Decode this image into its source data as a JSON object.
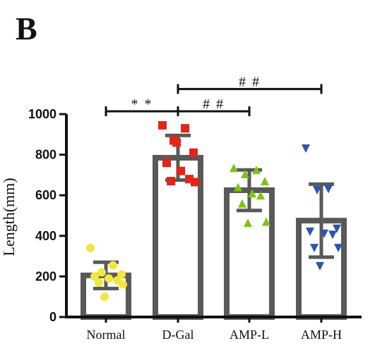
{
  "panel_label": "B",
  "chart_data": {
    "type": "bar",
    "ylabel": "Length(mm)",
    "xlabel": "",
    "ylim": [
      0,
      1000
    ],
    "yticks": [
      0,
      200,
      400,
      600,
      800,
      1000
    ],
    "ytick_labels": [
      "0",
      "200",
      "400",
      "600",
      "800",
      "1000"
    ],
    "categories": [
      "Normal",
      "D-Gal",
      "AMP-L",
      "AMP-H"
    ],
    "values": [
      205,
      785,
      625,
      475
    ],
    "error": [
      65,
      110,
      100,
      180
    ],
    "bar_fill": "#ffffff",
    "bar_edge": "#595959",
    "points": [
      {
        "category": "Normal",
        "marker": "circle",
        "color": "#f2e640",
        "values": [
          340,
          255,
          220,
          210,
          200,
          190,
          180,
          170,
          160,
          100
        ]
      },
      {
        "category": "D-Gal",
        "marker": "square",
        "color": "#e0261b",
        "values": [
          945,
          930,
          870,
          810,
          760,
          720,
          680,
          670,
          665,
          860
        ]
      },
      {
        "category": "AMP-L",
        "marker": "triangle-up",
        "color": "#7ec21a",
        "values": [
          735,
          725,
          705,
          670,
          640,
          610,
          600,
          560,
          470,
          465
        ]
      },
      {
        "category": "AMP-H",
        "marker": "triangle-down",
        "color": "#2e56a8",
        "values": [
          830,
          630,
          625,
          435,
          420,
          410,
          405,
          340,
          340,
          250
        ]
      }
    ],
    "significance": [
      {
        "from": "Normal",
        "to": "D-Gal",
        "y": 1000,
        "label": "* *"
      },
      {
        "from": "D-Gal",
        "to": "AMP-L",
        "y": 1000,
        "label": "# #"
      },
      {
        "from": "D-Gal",
        "to": "AMP-H",
        "y": 1110,
        "label": "# #"
      }
    ],
    "grid": false
  }
}
